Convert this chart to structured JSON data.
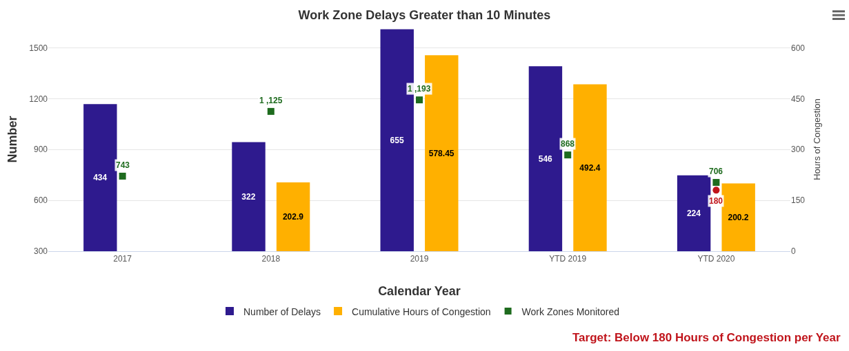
{
  "chart_data": {
    "type": "bar",
    "title": "Work Zone Delays Greater than 10 Minutes",
    "xlabel": "Calendar Year",
    "ylabel": "Number",
    "y2label": "Hours of Congestion",
    "categories": [
      "2017",
      "2018",
      "2019",
      "YTD 2019",
      "YTD 2020"
    ],
    "series": [
      {
        "name": "Number of Delays",
        "axis": "y2",
        "color": "#2e1a8e",
        "values": [
          434,
          322,
          655,
          546,
          224
        ],
        "value_labels": [
          "434",
          "322",
          "655",
          "546",
          "224"
        ]
      },
      {
        "name": "Cumulative Hours of Congestion",
        "axis": "y2",
        "color": "#ffb000",
        "values": [
          null,
          202.9,
          578.45,
          492.4,
          200.2
        ],
        "value_labels": [
          null,
          "202.9",
          "578.45",
          "492.4",
          "200.2"
        ]
      },
      {
        "name": "Work Zones Monitored",
        "type": "scatter",
        "marker": "square",
        "color": "#1e6b1e",
        "values": [
          743,
          1125,
          1193,
          868,
          706
        ],
        "value_labels": [
          "743",
          "1 ,125",
          "1 ,193",
          "868",
          "706"
        ]
      },
      {
        "type": "scatter",
        "marker": "circle",
        "axis": "y2",
        "color": "#c0141b",
        "values": [
          null,
          null,
          null,
          null,
          180
        ],
        "value_labels": [
          null,
          null,
          null,
          null,
          "180"
        ]
      }
    ],
    "ylim": [
      300,
      1620
    ],
    "yticks": [
      300,
      600,
      900,
      1200,
      1500
    ],
    "y2lim": [
      0,
      660
    ],
    "y2ticks": [
      0,
      150,
      300,
      450,
      600
    ],
    "grid": "y",
    "legend": "bottom",
    "annotations": [
      "Target: Below 180 Hours of Congestion per Year"
    ]
  }
}
